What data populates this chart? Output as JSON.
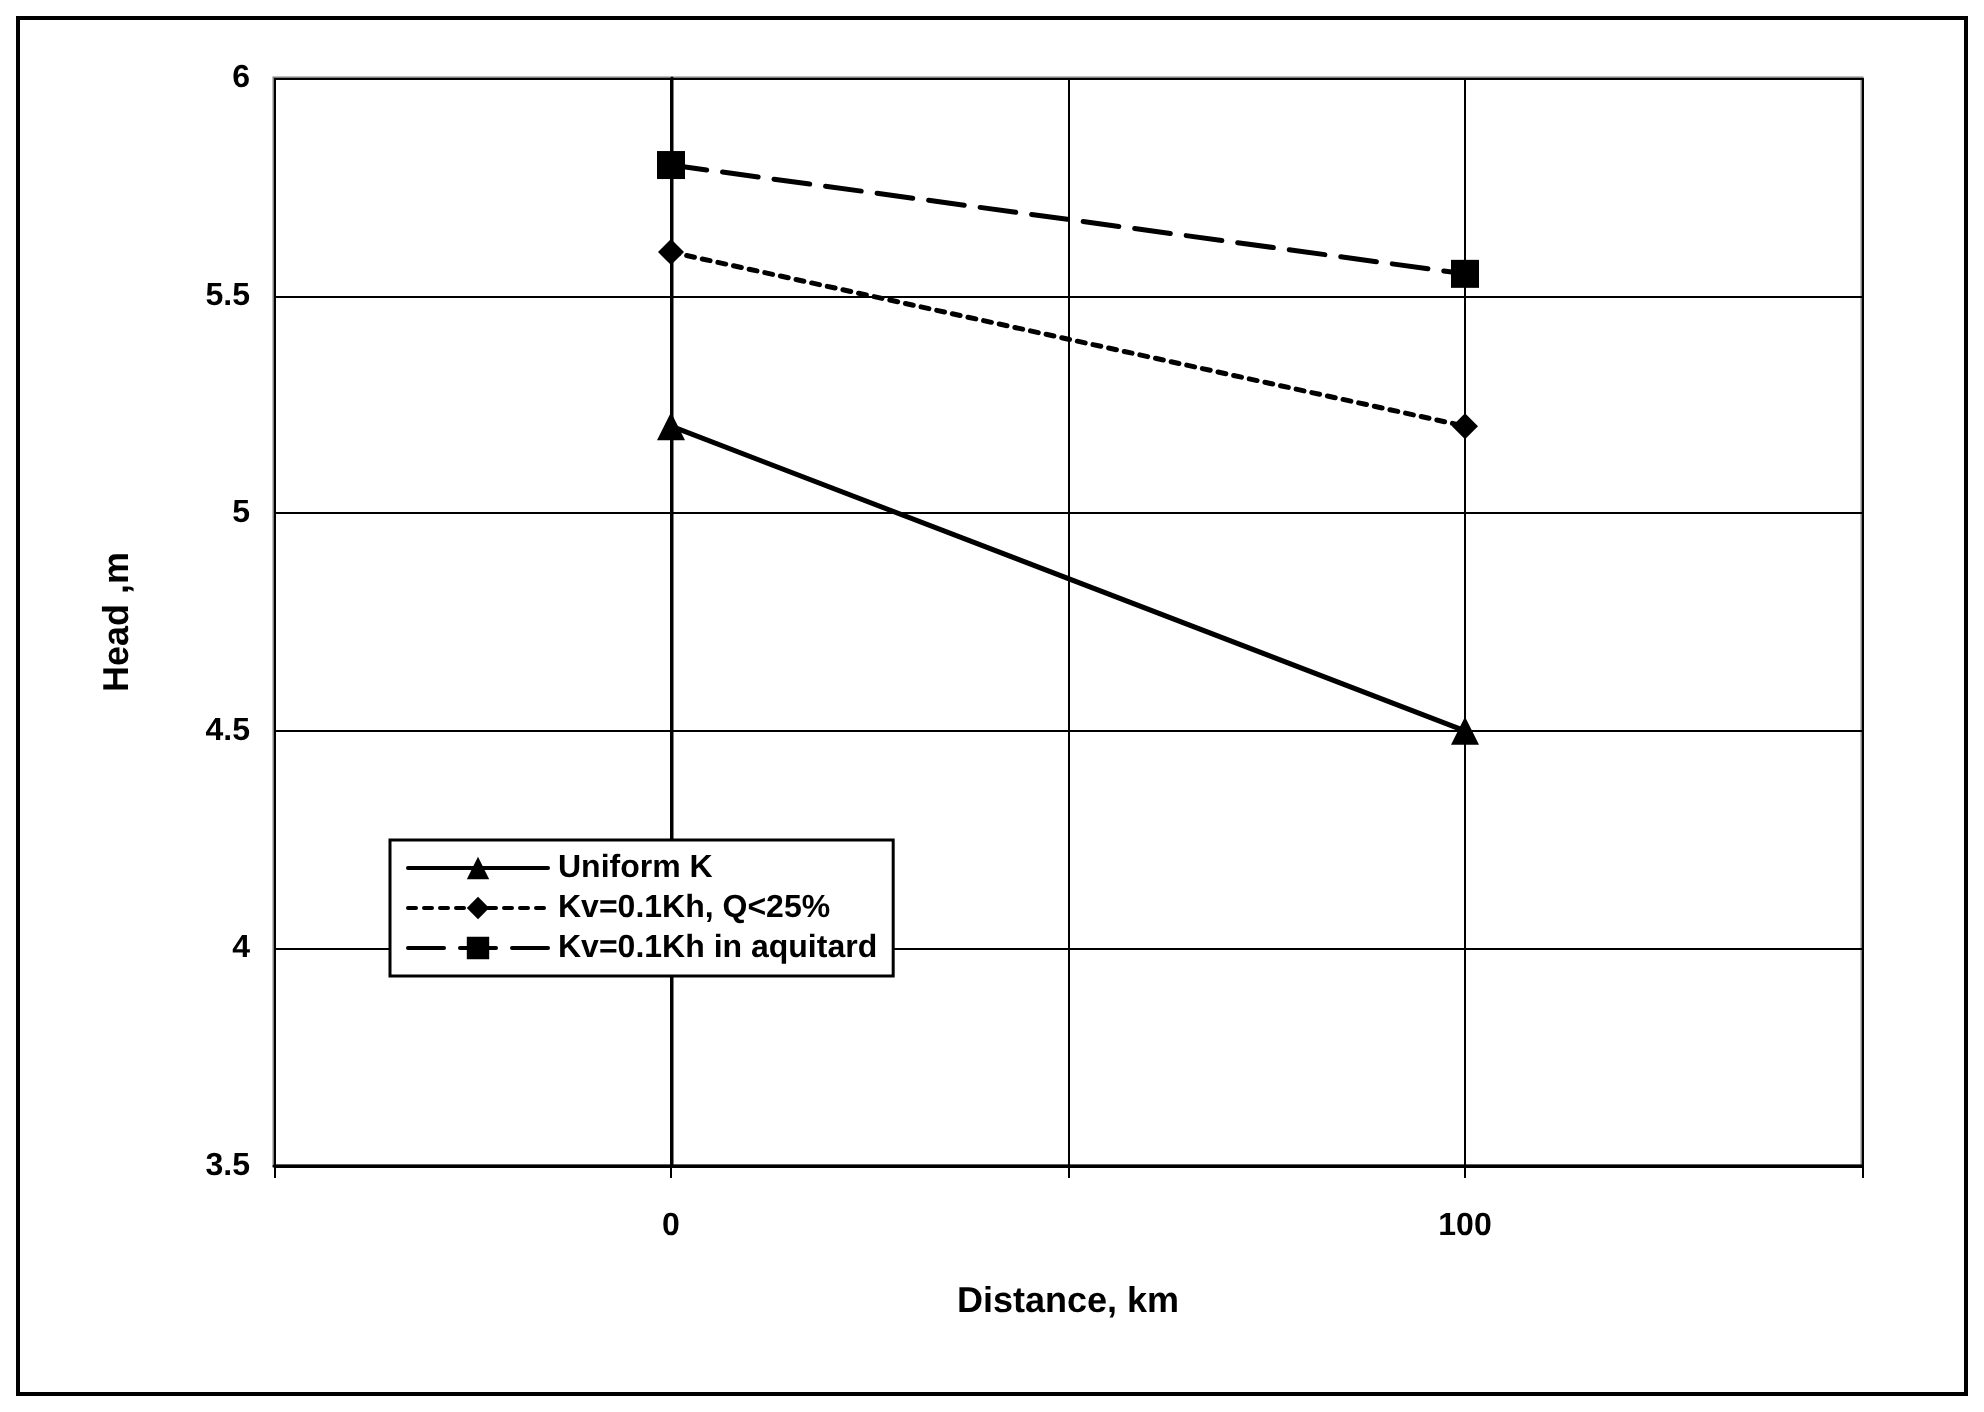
{
  "chart_data": {
    "type": "line",
    "xlabel": "Distance, km",
    "ylabel": "Head ,m",
    "x": [
      0,
      100
    ],
    "series": [
      {
        "name": "Uniform K",
        "color": "#000000",
        "values": [
          5.2,
          4.5
        ],
        "marker": "triangle",
        "line_style": "solid"
      },
      {
        "name": "Kv=0.1Kh, Q<25%",
        "color": "#000000",
        "values": [
          5.6,
          5.2
        ],
        "marker": "diamond",
        "line_style": "dotted"
      },
      {
        "name": "Kv=0.1Kh in aquitard",
        "color": "#000000",
        "values": [
          5.8,
          5.55
        ],
        "marker": "square",
        "line_style": "dashed"
      }
    ],
    "xlim": [
      -50,
      150
    ],
    "xticks": [
      {
        "value": -50,
        "label": null
      },
      0,
      {
        "value": 50,
        "label": null
      },
      100,
      {
        "value": 150,
        "label": null
      }
    ],
    "ylim": [
      3.5,
      6
    ],
    "yticks": [
      3.5,
      4,
      4.5,
      5,
      5.5,
      6
    ],
    "grid": true,
    "legend": "left"
  }
}
